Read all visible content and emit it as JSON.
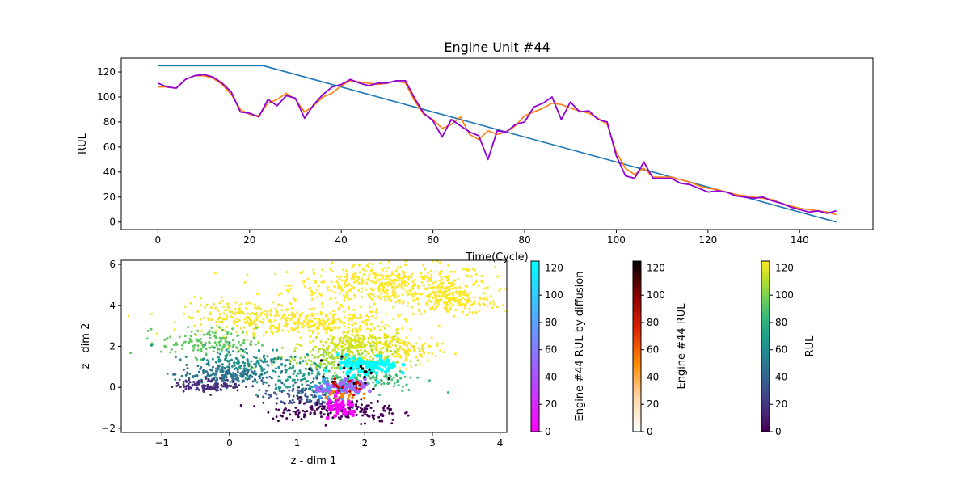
{
  "chart_data": [
    {
      "type": "line",
      "title": "Engine Unit #44",
      "xlabel": "Time(Cycle)",
      "ylabel": "RUL",
      "xlim": [
        -8,
        156
      ],
      "ylim": [
        -6,
        131
      ],
      "xticks": [
        0,
        20,
        40,
        60,
        80,
        100,
        120,
        140
      ],
      "yticks": [
        0,
        20,
        40,
        60,
        80,
        100,
        120
      ],
      "grid": false,
      "series": [
        {
          "color": "#1f77b4",
          "x": [
            0,
            23,
            148
          ],
          "y": [
            125,
            125,
            0
          ]
        },
        {
          "color": "#ff7f0e",
          "x": [
            0,
            2,
            4,
            6,
            8,
            10,
            12,
            14,
            16,
            18,
            20,
            22,
            24,
            26,
            28,
            30,
            32,
            34,
            36,
            38,
            40,
            42,
            44,
            46,
            48,
            50,
            52,
            54,
            56,
            58,
            60,
            62,
            64,
            66,
            68,
            70,
            72,
            74,
            76,
            78,
            80,
            82,
            84,
            86,
            88,
            90,
            92,
            94,
            96,
            98,
            100,
            102,
            104,
            106,
            108,
            110,
            112,
            114,
            116,
            118,
            120,
            122,
            124,
            126,
            128,
            130,
            132,
            134,
            136,
            138,
            140,
            142,
            144,
            146,
            148
          ],
          "y": [
            108,
            108,
            107,
            114,
            117,
            117,
            115,
            110,
            102,
            90,
            86,
            85,
            95,
            98,
            103,
            98,
            88,
            93,
            100,
            103,
            109,
            113,
            112,
            111,
            110,
            111,
            113,
            111,
            97,
            86,
            82,
            75,
            78,
            84,
            70,
            66,
            73,
            70,
            72,
            77,
            85,
            88,
            91,
            95,
            94,
            91,
            89,
            87,
            83,
            78,
            56,
            43,
            38,
            43,
            36,
            36,
            36,
            34,
            32,
            29,
            27,
            26,
            24,
            22,
            21,
            20,
            19,
            18,
            15,
            13,
            11,
            10,
            9,
            8,
            6
          ]
        },
        {
          "color": "#9400d3",
          "x": [
            0,
            2,
            4,
            6,
            8,
            10,
            12,
            14,
            16,
            18,
            20,
            22,
            24,
            26,
            28,
            30,
            32,
            34,
            36,
            38,
            40,
            42,
            44,
            46,
            48,
            50,
            52,
            54,
            56,
            58,
            60,
            62,
            64,
            66,
            68,
            70,
            72,
            74,
            76,
            78,
            80,
            82,
            84,
            86,
            88,
            90,
            92,
            94,
            96,
            98,
            100,
            102,
            104,
            106,
            108,
            110,
            112,
            114,
            116,
            118,
            120,
            122,
            124,
            126,
            128,
            130,
            132,
            134,
            136,
            138,
            140,
            142,
            144,
            146,
            148
          ],
          "y": [
            111,
            108,
            107,
            114,
            117,
            118,
            116,
            111,
            104,
            88,
            87,
            84,
            98,
            93,
            101,
            99,
            83,
            94,
            102,
            108,
            110,
            114,
            111,
            109,
            111,
            111,
            113,
            113,
            99,
            87,
            81,
            68,
            82,
            77,
            72,
            69,
            50,
            73,
            72,
            78,
            80,
            92,
            95,
            100,
            82,
            96,
            88,
            89,
            82,
            80,
            53,
            37,
            35,
            48,
            35,
            35,
            35,
            31,
            30,
            27,
            24,
            25,
            24,
            21,
            20,
            19,
            20,
            17,
            15,
            12,
            10,
            8,
            9,
            7,
            9
          ]
        }
      ]
    },
    {
      "type": "scatter",
      "xlabel": "z - dim 1",
      "ylabel": "z - dim 2",
      "xlim": [
        -1.6,
        4.1
      ],
      "ylim": [
        -2.2,
        6.2
      ],
      "xticks": [
        -1,
        0,
        1,
        2,
        3,
        4
      ],
      "yticks": [
        -2,
        0,
        2,
        4,
        6
      ],
      "grid": false,
      "clusters": [
        {
          "rul": 125,
          "color": "#fde725",
          "count": 480,
          "cx": 2.4,
          "cy": 5.0,
          "sx": 0.75,
          "sy": 0.5,
          "size": 2.2
        },
        {
          "rul": 122,
          "color": "#fde725",
          "count": 170,
          "cx": 3.3,
          "cy": 4.2,
          "sx": 0.35,
          "sy": 0.3,
          "size": 2.2
        },
        {
          "rul": 118,
          "color": "#fde725",
          "count": 260,
          "cx": 1.3,
          "cy": 3.2,
          "sx": 0.55,
          "sy": 0.35,
          "size": 2.2
        },
        {
          "rul": 115,
          "color": "#f2e52d",
          "count": 170,
          "cx": 0.2,
          "cy": 3.4,
          "sx": 0.45,
          "sy": 0.45,
          "size": 2.2
        },
        {
          "rul": 110,
          "color": "#d8e219",
          "count": 230,
          "cx": 1.9,
          "cy": 2.1,
          "sx": 0.35,
          "sy": 0.3,
          "size": 2.2
        },
        {
          "rul": 105,
          "color": "#fde725",
          "count": 90,
          "cx": 2.6,
          "cy": 1.8,
          "sx": 0.25,
          "sy": 0.4,
          "size": 2.2
        },
        {
          "rul": 95,
          "color": "#a0da39",
          "count": 150,
          "cx": 1.5,
          "cy": 1.4,
          "sx": 0.45,
          "sy": 0.3,
          "size": 2.2
        },
        {
          "rul": 85,
          "color": "#5ec962",
          "count": 140,
          "cx": -0.3,
          "cy": 2.2,
          "sx": 0.35,
          "sy": 0.35,
          "size": 2.2
        },
        {
          "rul": 75,
          "color": "#3fbc73",
          "count": 110,
          "cx": 2.1,
          "cy": 0.4,
          "sx": 0.4,
          "sy": 0.3,
          "size": 2.2
        },
        {
          "rul": 65,
          "color": "#21918c",
          "count": 180,
          "cx": 0.2,
          "cy": 1.2,
          "sx": 0.4,
          "sy": 0.4,
          "size": 2.2
        },
        {
          "rul": 55,
          "color": "#1f9e89",
          "count": 120,
          "cx": 1.1,
          "cy": 0.3,
          "sx": 0.35,
          "sy": 0.4,
          "size": 2.2
        },
        {
          "rul": 45,
          "color": "#2c728e",
          "count": 150,
          "cx": -0.1,
          "cy": 0.6,
          "sx": 0.35,
          "sy": 0.25,
          "size": 2.2
        },
        {
          "rul": 35,
          "color": "#3b528b",
          "count": 110,
          "cx": 1.1,
          "cy": -0.4,
          "sx": 0.3,
          "sy": 0.35,
          "size": 2.2
        },
        {
          "rul": 20,
          "color": "#472d7b",
          "count": 120,
          "cx": -0.3,
          "cy": 0.1,
          "sx": 0.25,
          "sy": 0.15,
          "size": 2.2
        },
        {
          "rul": 10,
          "color": "#440154",
          "count": 100,
          "cx": 1.2,
          "cy": -1.1,
          "sx": 0.35,
          "sy": 0.25,
          "size": 2.2
        },
        {
          "rul": 5,
          "color": "#440154",
          "count": 80,
          "cx": 2.0,
          "cy": -1.2,
          "sx": 0.25,
          "sy": 0.3,
          "size": 2.2
        },
        {
          "rul": 100,
          "color": "#00ffff",
          "count": 90,
          "cx": 2.05,
          "cy": 1.05,
          "sx": 0.22,
          "sy": 0.25,
          "size": 3.6
        },
        {
          "rul": 70,
          "color": "#3fa2ff",
          "count": 40,
          "cx": 1.6,
          "cy": 0.0,
          "sx": 0.2,
          "sy": 0.2,
          "size": 3.6
        },
        {
          "rul": 40,
          "color": "#a466ff",
          "count": 40,
          "cx": 1.8,
          "cy": 0.0,
          "sx": 0.25,
          "sy": 0.15,
          "size": 3.6
        },
        {
          "rul": 10,
          "color": "#ff00ff",
          "count": 45,
          "cx": 1.65,
          "cy": -1.05,
          "sx": 0.12,
          "sy": 0.25,
          "size": 3.6
        },
        {
          "rul": 125,
          "color": "#000000",
          "count": 20,
          "cx": 1.8,
          "cy": 0.6,
          "sx": 0.35,
          "sy": 0.35,
          "size": 2.6
        },
        {
          "rul": 60,
          "color": "#cc0000",
          "count": 20,
          "cx": 1.7,
          "cy": 0.0,
          "sx": 0.2,
          "sy": 0.25,
          "size": 2.6
        },
        {
          "rul": 30,
          "color": "#ff7f00",
          "count": 15,
          "cx": 1.65,
          "cy": -0.4,
          "sx": 0.15,
          "sy": 0.2,
          "size": 2.6
        }
      ],
      "colorbars": [
        {
          "label": "Engine #44 RUL by diffusion",
          "cmap": "cool_r",
          "range": [
            0,
            125
          ],
          "ticks": [
            0,
            20,
            40,
            60,
            80,
            100,
            120
          ],
          "colors": [
            "#ff00ff",
            "#00ffff"
          ]
        },
        {
          "label": "Engine #44 RUL",
          "cmap": "gist_heat_r",
          "range": [
            0,
            125
          ],
          "ticks": [
            0,
            20,
            40,
            60,
            80,
            100,
            120
          ],
          "colors": [
            "#ffffff",
            "#ffd6a6",
            "#ff8a00",
            "#e02400",
            "#8a0000",
            "#000000"
          ]
        },
        {
          "label": "RUL",
          "cmap": "viridis",
          "range": [
            0,
            125
          ],
          "ticks": [
            0,
            20,
            40,
            60,
            80,
            100,
            120
          ],
          "colors": [
            "#440154",
            "#482878",
            "#3e4989",
            "#31688e",
            "#26828e",
            "#1f9e89",
            "#35b779",
            "#6ece58",
            "#b5de2b",
            "#fde725"
          ]
        }
      ]
    }
  ]
}
